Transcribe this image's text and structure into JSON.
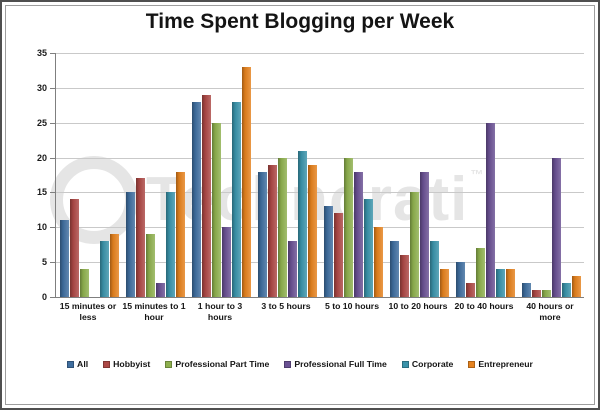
{
  "title": "Time Spent Blogging per Week",
  "watermark": {
    "text": "Technorati",
    "tm": "™"
  },
  "axis_colors": {
    "grid": "#c9c9c9",
    "axis": "#7f7f7f"
  },
  "chart_data": {
    "type": "bar",
    "title": "Time Spent Blogging per Week",
    "xlabel": "",
    "ylabel": "",
    "ylim": [
      0,
      35
    ],
    "yticks": [
      0,
      5,
      10,
      15,
      20,
      25,
      30,
      35
    ],
    "grid": true,
    "legend_position": "bottom",
    "categories": [
      "15 minutes or less",
      "15 minutes to 1 hour",
      "1 hour to 3 hours",
      "3 to 5 hours",
      "5 to 10 hours",
      "10 to 20 hours",
      "20 to 40 hours",
      "40 hours or more"
    ],
    "series": [
      {
        "name": "All",
        "color": "#3F6E9F",
        "values": [
          11,
          15,
          28,
          18,
          13,
          8,
          5,
          2
        ]
      },
      {
        "name": "Hobbyist",
        "color": "#AC4845",
        "values": [
          14,
          17,
          29,
          19,
          12,
          6,
          2,
          1
        ]
      },
      {
        "name": "Professional Part Time",
        "color": "#8EB04E",
        "values": [
          4,
          9,
          25,
          20,
          20,
          15,
          7,
          1
        ]
      },
      {
        "name": "Professional Full Time",
        "color": "#6A5193",
        "values": [
          0,
          2,
          10,
          8,
          18,
          18,
          25,
          20
        ]
      },
      {
        "name": "Corporate",
        "color": "#3A93AA",
        "values": [
          8,
          15,
          28,
          21,
          14,
          8,
          4,
          2
        ]
      },
      {
        "name": "Entrepreneur",
        "color": "#E5821E",
        "values": [
          9,
          18,
          33,
          19,
          10,
          4,
          4,
          3
        ]
      }
    ]
  }
}
